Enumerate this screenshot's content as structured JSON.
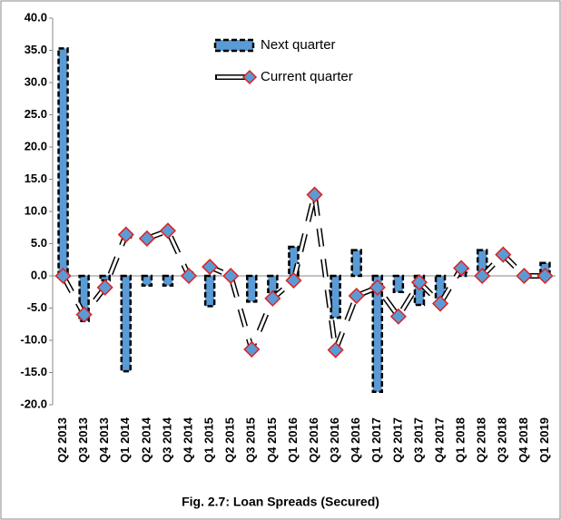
{
  "chart_data": {
    "type": "bar-line",
    "title": "Fig. 2.7: Loan Spreads (Secured)",
    "categories": [
      "Q2 2013",
      "Q3 2013",
      "Q4 2013",
      "Q1 2014",
      "Q2 2014",
      "Q3 2014",
      "Q4 2014",
      "Q1 2015",
      "Q2 2015",
      "Q3 2015",
      "Q4 2015",
      "Q1 2016",
      "Q2 2016",
      "Q3 2016",
      "Q4 2016",
      "Q1 2017",
      "Q2 2017",
      "Q3 2017",
      "Q4 2017",
      "Q1 2018",
      "Q2 2018",
      "Q3 2018",
      "Q4 2018",
      "Q1 2019"
    ],
    "series": [
      {
        "name": "Next quarter",
        "type": "bar",
        "color": "#5b9bd5",
        "values": [
          35.3,
          -7.0,
          -0.7,
          -14.8,
          -1.5,
          -1.5,
          0,
          -4.7,
          0,
          -4.0,
          -2.5,
          4.5,
          0,
          -6.5,
          4.0,
          -18.0,
          -2.5,
          -4.5,
          -3.5,
          0.5,
          4.0,
          0,
          0,
          2.0
        ]
      },
      {
        "name": "Current quarter",
        "type": "line",
        "color": "#5b9bd5",
        "values": [
          0,
          -6.0,
          -1.8,
          6.4,
          5.8,
          7.0,
          0,
          1.4,
          0,
          -11.4,
          -3.5,
          -0.7,
          12.6,
          -11.5,
          -3.1,
          -1.8,
          -6.3,
          -1.0,
          -4.3,
          1.2,
          0,
          3.3,
          0,
          0
        ]
      }
    ],
    "ylim": [
      -20,
      40
    ],
    "yticks": [
      {
        "value": -20,
        "label": "-20.0"
      },
      {
        "value": -15,
        "label": "-15.0"
      },
      {
        "value": -10,
        "label": "-10.0"
      },
      {
        "value": -5,
        "label": "-5.0"
      },
      {
        "value": 0,
        "label": "0.0"
      },
      {
        "value": 5,
        "label": "5.0"
      },
      {
        "value": 10,
        "label": "10.0"
      },
      {
        "value": 15,
        "label": "15.0"
      },
      {
        "value": 20,
        "label": "20.0"
      },
      {
        "value": 25,
        "label": "25.0"
      },
      {
        "value": 30,
        "label": "30.0"
      },
      {
        "value": 35,
        "label": "35.0"
      },
      {
        "value": 40,
        "label": "40.0"
      }
    ],
    "grid": false
  }
}
